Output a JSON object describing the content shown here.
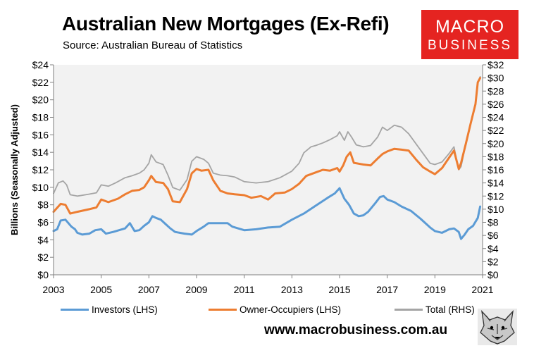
{
  "header": {
    "title": "Australian New Mortgages (Ex-Refi)",
    "subtitle": "Source: Australian Bureau of Statistics"
  },
  "logo": {
    "line1": "MACRO",
    "line2": "BUSINESS"
  },
  "footer": {
    "website": "www.macrobusiness.com.au",
    "mascot_icon": "wolf-icon"
  },
  "colors": {
    "investors": "#5b9bd5",
    "owner_occupiers": "#ed7d31",
    "total": "#a5a5a5",
    "plot_bg": "#f2f2f2",
    "logo_bg": "#e52421"
  },
  "chart_data": {
    "type": "line",
    "title": "Australian New Mortgages (Ex-Refi)",
    "subtitle": "Source: Australian Bureau of Statistics",
    "ylabel": "Billions (Seasonally Adjusted)",
    "y2label": "",
    "xlim": [
      2003,
      2021
    ],
    "ylim": [
      0,
      24
    ],
    "y2lim": [
      0,
      32
    ],
    "x_ticks": [
      "2003",
      "2005",
      "2007",
      "2009",
      "2011",
      "2013",
      "2015",
      "2017",
      "2019",
      "2021"
    ],
    "y_ticks": [
      "$0",
      "$2",
      "$4",
      "$6",
      "$8",
      "$10",
      "$12",
      "$14",
      "$16",
      "$18",
      "$20",
      "$22",
      "$24"
    ],
    "y2_ticks": [
      "$0",
      "$2",
      "$4",
      "$6",
      "$8",
      "$10",
      "$12",
      "$14",
      "$16",
      "$18",
      "$20",
      "$22",
      "$24",
      "$26",
      "$28",
      "$30",
      "$32"
    ],
    "grid": false,
    "legend_position": "bottom",
    "series": [
      {
        "name": "Investors (LHS)",
        "axis": "left",
        "color": "#5b9bd5",
        "x": [
          2003.0,
          2003.15,
          2003.3,
          2003.5,
          2003.75,
          2003.9,
          2004.0,
          2004.2,
          2004.5,
          2004.75,
          2005.0,
          2005.2,
          2005.5,
          2005.75,
          2006.0,
          2006.2,
          2006.4,
          2006.6,
          2006.8,
          2007.0,
          2007.15,
          2007.3,
          2007.5,
          2007.7,
          2007.9,
          2008.1,
          2008.5,
          2008.8,
          2009.0,
          2009.3,
          2009.5,
          2010.0,
          2010.3,
          2010.5,
          2010.75,
          2011.0,
          2011.5,
          2012.0,
          2012.5,
          2013.0,
          2013.5,
          2014.0,
          2014.5,
          2014.8,
          2015.0,
          2015.2,
          2015.4,
          2015.6,
          2015.8,
          2016.0,
          2016.2,
          2016.5,
          2016.7,
          2016.85,
          2017.0,
          2017.3,
          2017.6,
          2018.0,
          2018.4,
          2018.8,
          2019.0,
          2019.3,
          2019.6,
          2019.8,
          2020.0,
          2020.1,
          2020.25,
          2020.4,
          2020.6,
          2020.8,
          2020.9
        ],
        "values": [
          5.0,
          5.2,
          6.2,
          6.3,
          5.5,
          5.2,
          4.8,
          4.6,
          4.7,
          5.1,
          5.2,
          4.7,
          4.9,
          5.1,
          5.3,
          5.9,
          5.0,
          5.1,
          5.6,
          6.0,
          6.7,
          6.5,
          6.3,
          5.8,
          5.3,
          4.9,
          4.7,
          4.6,
          5.0,
          5.5,
          5.9,
          5.9,
          5.9,
          5.5,
          5.3,
          5.1,
          5.2,
          5.4,
          5.5,
          6.3,
          7.0,
          7.9,
          8.8,
          9.3,
          9.9,
          8.7,
          8.0,
          7.0,
          6.7,
          6.8,
          7.2,
          8.2,
          8.9,
          9.0,
          8.6,
          8.3,
          7.8,
          7.3,
          6.4,
          5.4,
          5.0,
          4.8,
          5.2,
          5.3,
          4.9,
          4.1,
          4.6,
          5.2,
          5.6,
          6.5,
          7.8
        ]
      },
      {
        "name": "Owner-Occupiers (LHS)",
        "axis": "left",
        "color": "#ed7d31",
        "x": [
          2003.0,
          2003.3,
          2003.5,
          2003.7,
          2004.0,
          2004.5,
          2004.8,
          2005.0,
          2005.3,
          2005.7,
          2006.0,
          2006.3,
          2006.6,
          2006.8,
          2007.0,
          2007.1,
          2007.3,
          2007.6,
          2007.8,
          2008.0,
          2008.3,
          2008.6,
          2008.8,
          2009.0,
          2009.2,
          2009.5,
          2009.7,
          2010.0,
          2010.3,
          2010.6,
          2011.0,
          2011.3,
          2011.7,
          2012.0,
          2012.3,
          2012.7,
          2013.0,
          2013.3,
          2013.6,
          2014.0,
          2014.3,
          2014.6,
          2014.9,
          2015.0,
          2015.15,
          2015.3,
          2015.45,
          2015.6,
          2015.8,
          2016.0,
          2016.3,
          2016.6,
          2016.8,
          2017.0,
          2017.3,
          2017.6,
          2017.9,
          2018.2,
          2018.5,
          2018.8,
          2019.0,
          2019.3,
          2019.6,
          2019.8,
          2020.0,
          2020.1,
          2020.3,
          2020.5,
          2020.7,
          2020.8,
          2020.9
        ],
        "values": [
          7.2,
          8.1,
          8.0,
          7.0,
          7.2,
          7.5,
          7.7,
          8.6,
          8.3,
          8.7,
          9.2,
          9.6,
          9.7,
          10.0,
          10.8,
          11.3,
          10.6,
          10.5,
          9.8,
          8.4,
          8.3,
          9.8,
          11.6,
          12.1,
          11.9,
          12.0,
          10.8,
          9.6,
          9.3,
          9.2,
          9.1,
          8.8,
          9.0,
          8.6,
          9.3,
          9.4,
          9.8,
          10.4,
          11.3,
          11.7,
          12.0,
          11.9,
          12.2,
          11.8,
          12.5,
          13.5,
          14.0,
          12.8,
          12.7,
          12.6,
          12.5,
          13.3,
          13.8,
          14.1,
          14.4,
          14.3,
          14.2,
          13.2,
          12.3,
          11.8,
          11.5,
          12.2,
          13.4,
          14.2,
          12.1,
          12.8,
          15.0,
          17.3,
          19.5,
          22.0,
          22.5
        ]
      },
      {
        "name": "Total (RHS)",
        "axis": "right",
        "color": "#a5a5a5",
        "x": [
          2003.0,
          2003.2,
          2003.4,
          2003.55,
          2003.7,
          2004.0,
          2004.5,
          2004.8,
          2005.0,
          2005.3,
          2005.6,
          2006.0,
          2006.3,
          2006.6,
          2006.8,
          2007.0,
          2007.1,
          2007.3,
          2007.6,
          2007.8,
          2008.0,
          2008.3,
          2008.6,
          2008.8,
          2009.0,
          2009.3,
          2009.5,
          2009.7,
          2010.0,
          2010.3,
          2010.6,
          2011.0,
          2011.5,
          2012.0,
          2012.5,
          2013.0,
          2013.3,
          2013.5,
          2013.8,
          2014.0,
          2014.3,
          2014.6,
          2014.9,
          2015.0,
          2015.2,
          2015.35,
          2015.5,
          2015.7,
          2016.0,
          2016.3,
          2016.6,
          2016.8,
          2017.0,
          2017.3,
          2017.6,
          2017.9,
          2018.2,
          2018.5,
          2018.8,
          2019.0,
          2019.3,
          2019.6,
          2019.8,
          2020.0,
          2020.1,
          2020.3,
          2020.5,
          2020.7,
          2020.8,
          2020.9
        ],
        "values": [
          12.4,
          14.0,
          14.3,
          13.7,
          12.2,
          12.0,
          12.3,
          12.5,
          13.7,
          13.5,
          14.0,
          14.8,
          15.1,
          15.5,
          16.0,
          17.0,
          18.3,
          17.2,
          16.8,
          15.2,
          13.3,
          12.9,
          14.5,
          17.3,
          18.0,
          17.6,
          17.0,
          15.5,
          15.2,
          15.1,
          14.9,
          14.2,
          14.0,
          14.2,
          14.8,
          15.8,
          17.0,
          18.6,
          19.5,
          19.7,
          20.1,
          20.6,
          21.2,
          21.8,
          20.5,
          21.8,
          21.0,
          19.8,
          19.5,
          19.7,
          21.0,
          22.5,
          22.0,
          22.8,
          22.5,
          21.5,
          20.0,
          18.5,
          17.0,
          16.8,
          17.2,
          18.5,
          19.5,
          16.0,
          16.5,
          20.0,
          23.0,
          26.0,
          29.3,
          30.2
        ]
      }
    ]
  }
}
